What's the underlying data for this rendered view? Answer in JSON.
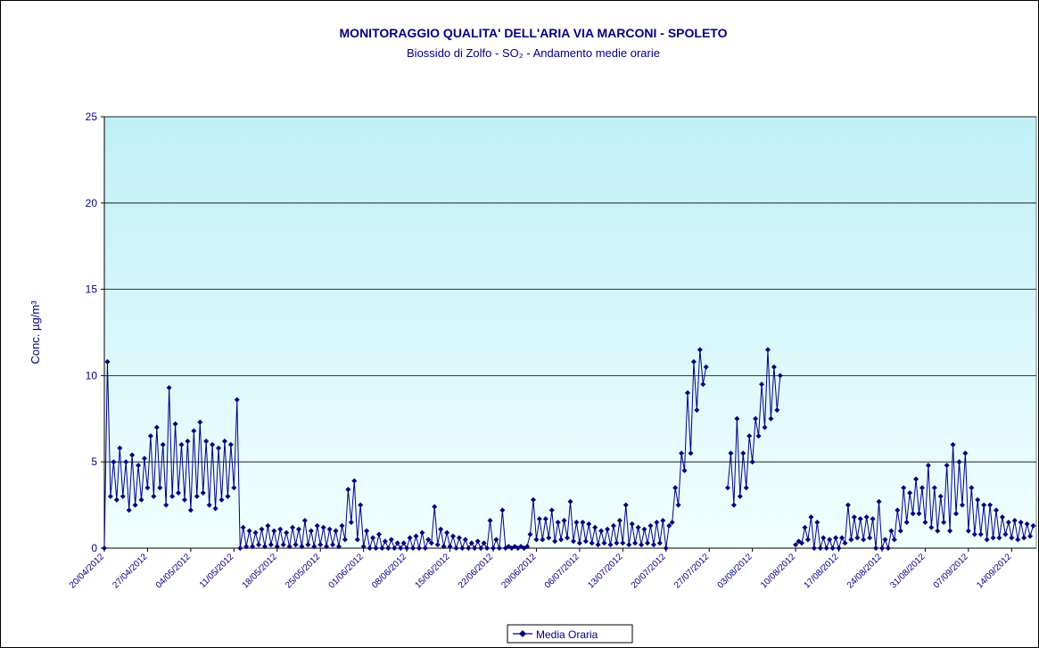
{
  "chart_data": {
    "type": "line",
    "title": "MONITORAGGIO QUALITA' DELL'ARIA  VIA MARCONI - SPOLETO",
    "subtitle": "Biossido di Zolfo - SO₂ - Andamento medie orarie",
    "y_label": "Conc. µg/m³",
    "ylim": [
      0,
      25
    ],
    "yticks": [
      0,
      5,
      10,
      15,
      20,
      25
    ],
    "grid": true,
    "legend": "bottom",
    "categories": [
      "20/04/2012",
      null,
      null,
      null,
      null,
      null,
      null,
      null,
      null,
      null,
      null,
      null,
      null,
      null,
      "27/04/2012",
      null,
      null,
      null,
      null,
      null,
      null,
      null,
      null,
      null,
      null,
      null,
      null,
      null,
      "04/05/2012",
      null,
      null,
      null,
      null,
      null,
      null,
      null,
      null,
      null,
      null,
      null,
      null,
      null,
      "11/05/2012",
      null,
      null,
      null,
      null,
      null,
      null,
      null,
      null,
      null,
      null,
      null,
      null,
      null,
      "18/05/2012",
      null,
      null,
      null,
      null,
      null,
      null,
      null,
      null,
      null,
      null,
      null,
      null,
      null,
      "25/05/2012",
      null,
      null,
      null,
      null,
      null,
      null,
      null,
      null,
      null,
      null,
      null,
      null,
      null,
      "01/06/2012",
      null,
      null,
      null,
      null,
      null,
      null,
      null,
      null,
      null,
      null,
      null,
      null,
      null,
      "08/06/2012",
      null,
      null,
      null,
      null,
      null,
      null,
      null,
      null,
      null,
      null,
      null,
      null,
      null,
      "15/06/2012",
      null,
      null,
      null,
      null,
      null,
      null,
      null,
      null,
      null,
      null,
      null,
      null,
      null,
      "22/06/2012",
      null,
      null,
      null,
      null,
      null,
      null,
      null,
      null,
      null,
      null,
      null,
      null,
      null,
      "29/06/2012",
      null,
      null,
      null,
      null,
      null,
      null,
      null,
      null,
      null,
      null,
      null,
      null,
      null,
      "06/07/2012",
      null,
      null,
      null,
      null,
      null,
      null,
      null,
      null,
      null,
      null,
      null,
      null,
      null,
      "13/07/2012",
      null,
      null,
      null,
      null,
      null,
      null,
      null,
      null,
      null,
      null,
      null,
      null,
      null,
      "20/07/2012",
      null,
      null,
      null,
      null,
      null,
      null,
      null,
      null,
      null,
      null,
      null,
      null,
      null,
      "27/07/2012",
      null,
      null,
      null,
      null,
      null,
      null,
      null,
      null,
      null,
      null,
      null,
      null,
      null,
      "03/08/2012",
      null,
      null,
      null,
      null,
      null,
      null,
      null,
      null,
      null,
      null,
      null,
      null,
      null,
      "10/08/2012",
      null,
      null,
      null,
      null,
      null,
      null,
      null,
      null,
      null,
      null,
      null,
      null,
      null,
      "17/08/2012",
      null,
      null,
      null,
      null,
      null,
      null,
      null,
      null,
      null,
      null,
      null,
      null,
      null,
      "24/08/2012",
      null,
      null,
      null,
      null,
      null,
      null,
      null,
      null,
      null,
      null,
      null,
      null,
      null,
      "31/08/2012",
      null,
      null,
      null,
      null,
      null,
      null,
      null,
      null,
      null,
      null,
      null,
      null,
      null,
      "07/09/2012",
      null,
      null,
      null,
      null,
      null,
      null,
      null,
      null,
      null,
      null,
      null,
      null,
      null,
      "14/09/2012",
      null,
      null,
      null,
      null,
      null,
      null,
      null
    ],
    "series": [
      {
        "name": "Media Oraria",
        "color": "#000080",
        "values": [
          0,
          10.8,
          3,
          5,
          2.8,
          5.8,
          3,
          5,
          2.2,
          5.4,
          2.5,
          4.8,
          2.8,
          5.2,
          3.5,
          6.5,
          3,
          7,
          3.5,
          6,
          2.5,
          9.3,
          3,
          7.2,
          3.2,
          6,
          2.8,
          6.2,
          2.2,
          6.8,
          3,
          7.3,
          3.2,
          6.2,
          2.5,
          6,
          2.3,
          5.8,
          2.8,
          6.2,
          3,
          6,
          3.5,
          8.6,
          0,
          1.2,
          0.1,
          1,
          0.1,
          0.9,
          0.2,
          1.1,
          0.1,
          1.3,
          0.2,
          1,
          0.1,
          1.1,
          0.2,
          0.9,
          0.1,
          1.2,
          0.2,
          1.1,
          0.1,
          1.6,
          0.2,
          1,
          0.1,
          1.3,
          0.2,
          1.2,
          0.1,
          1.1,
          0.2,
          1,
          0.1,
          1.3,
          0.5,
          3.4,
          1.5,
          3.9,
          0.5,
          2.5,
          0.1,
          1,
          0,
          0.6,
          0,
          0.8,
          0,
          0.4,
          0,
          0.5,
          0,
          0.3,
          0,
          0.3,
          0,
          0.6,
          0,
          0.7,
          0,
          0.9,
          0,
          0.5,
          0.3,
          2.4,
          0.2,
          1.1,
          0.1,
          0.9,
          0.1,
          0.7,
          0,
          0.6,
          0,
          0.5,
          0,
          0.3,
          0,
          0.4,
          0,
          0.3,
          0,
          1.6,
          0,
          0.5,
          0,
          2.2,
          0,
          0.1,
          0,
          0.1,
          0,
          0.1,
          0,
          0.1,
          0.8,
          2.8,
          0.5,
          1.7,
          0.5,
          1.7,
          0.6,
          2.2,
          0.4,
          1.5,
          0.5,
          1.6,
          0.6,
          2.7,
          0.4,
          1.5,
          0.3,
          1.5,
          0.4,
          1.4,
          0.3,
          1.2,
          0.2,
          1,
          0.3,
          1.1,
          0.2,
          1.3,
          0.3,
          1.6,
          0.3,
          2.5,
          0.2,
          1.4,
          0.3,
          1.2,
          0.2,
          1.1,
          0.3,
          1.3,
          0.2,
          1.5,
          0.3,
          1.6,
          0,
          1.3,
          1.5,
          3.5,
          2.5,
          5.5,
          4.5,
          9,
          5.5,
          10.8,
          8,
          11.5,
          9.5,
          10.5,
          null,
          null,
          null,
          null,
          null,
          null,
          3.5,
          5.5,
          2.5,
          7.5,
          3,
          5.5,
          3.5,
          6.5,
          5,
          7.5,
          6.5,
          9.5,
          7,
          11.5,
          7.5,
          10.5,
          8,
          10,
          null,
          null,
          null,
          null,
          0.2,
          0.4,
          0.3,
          1.2,
          0.5,
          1.8,
          0,
          1.5,
          0,
          0.6,
          0,
          0.5,
          0,
          0.6,
          0,
          0.6,
          0.3,
          2.5,
          0.5,
          1.8,
          0.6,
          1.7,
          0.5,
          1.8,
          0.6,
          1.7,
          0,
          2.7,
          0,
          0.5,
          0,
          1,
          0.5,
          2.2,
          1,
          3.5,
          1.5,
          3.2,
          2,
          4,
          2,
          3.5,
          1.5,
          4.8,
          1.2,
          3.5,
          1,
          3,
          1.5,
          4.8,
          1,
          6,
          2,
          5,
          2.5,
          5.5,
          1,
          3.5,
          0.8,
          2.8,
          0.8,
          2.5,
          0.5,
          2.5,
          0.6,
          2.2,
          0.6,
          1.8,
          0.8,
          1.5,
          0.6,
          1.6,
          0.5,
          1.5,
          0.6,
          1.4,
          0.7,
          1.3
        ]
      }
    ]
  }
}
